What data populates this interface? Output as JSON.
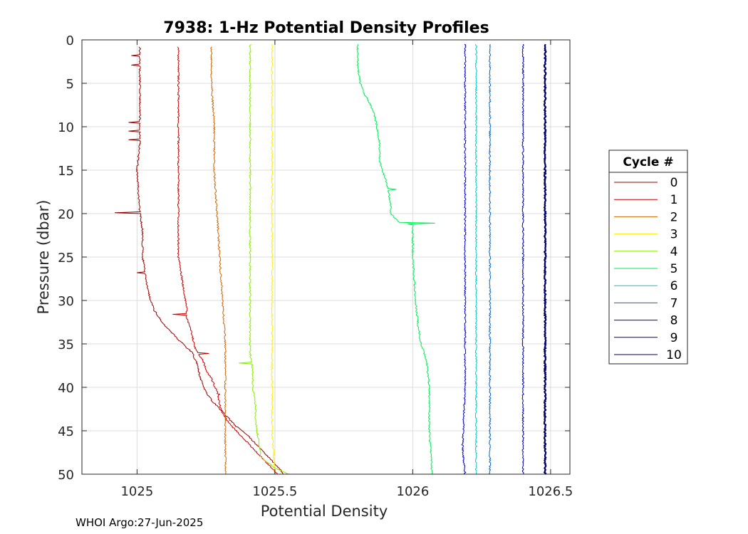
{
  "chart_data": {
    "type": "line",
    "title": "7938: 1-Hz Potential Density Profiles",
    "xlabel": "Potential Density",
    "ylabel": "Pressure (dbar)",
    "xlim": [
      1024.8,
      1026.57
    ],
    "ylim": [
      0,
      50
    ],
    "y_reversed": true,
    "grid": true,
    "xticks": [
      1025,
      1025.5,
      1026,
      1026.5
    ],
    "xtick_labels": [
      "1025",
      "1025.5",
      "1026",
      "1026.5"
    ],
    "yticks": [
      0,
      5,
      10,
      15,
      20,
      25,
      30,
      35,
      40,
      45,
      50
    ],
    "ytick_labels": [
      "0",
      "5",
      "10",
      "15",
      "20",
      "25",
      "30",
      "35",
      "40",
      "45",
      "50"
    ],
    "legend_title": "Cycle #",
    "legend_position": "right",
    "series": [
      {
        "name": "0",
        "color": "#990000",
        "points": [
          [
            1025.01,
            0.8
          ],
          [
            1025.01,
            1.8
          ],
          [
            1025.01,
            3
          ],
          [
            1025.01,
            5
          ],
          [
            1025.01,
            8
          ],
          [
            1025.01,
            9.5
          ],
          [
            1025.01,
            12
          ],
          [
            1025.0,
            15
          ],
          [
            1025.01,
            19.8
          ],
          [
            1025.02,
            22
          ],
          [
            1025.02,
            25
          ],
          [
            1025.03,
            27
          ],
          [
            1025.04,
            29
          ],
          [
            1025.06,
            31
          ],
          [
            1025.09,
            32.5
          ],
          [
            1025.12,
            33.5
          ],
          [
            1025.15,
            34.5
          ],
          [
            1025.2,
            36
          ],
          [
            1025.22,
            37.5
          ],
          [
            1025.23,
            39
          ],
          [
            1025.25,
            40.5
          ],
          [
            1025.27,
            41.5
          ],
          [
            1025.3,
            42.5
          ],
          [
            1025.33,
            43.5
          ],
          [
            1025.36,
            44.5
          ],
          [
            1025.4,
            45.5
          ],
          [
            1025.43,
            46.5
          ],
          [
            1025.46,
            47.5
          ],
          [
            1025.49,
            48.5
          ],
          [
            1025.52,
            49.5
          ],
          [
            1025.53,
            50
          ]
        ],
        "spikes": [
          [
            1024.98,
            1.8
          ],
          [
            1024.98,
            2.9
          ],
          [
            1024.97,
            9.5
          ],
          [
            1024.97,
            10.5
          ],
          [
            1024.97,
            11.5
          ],
          [
            1024.92,
            19.9
          ],
          [
            1025.0,
            26.8
          ]
        ]
      },
      {
        "name": "1",
        "color": "#cc0000",
        "points": [
          [
            1025.15,
            0.8
          ],
          [
            1025.15,
            5
          ],
          [
            1025.15,
            10
          ],
          [
            1025.15,
            15
          ],
          [
            1025.15,
            20
          ],
          [
            1025.15,
            25
          ],
          [
            1025.16,
            27
          ],
          [
            1025.17,
            29
          ],
          [
            1025.18,
            31
          ],
          [
            1025.18,
            32
          ],
          [
            1025.19,
            33
          ],
          [
            1025.2,
            34
          ],
          [
            1025.21,
            35.5
          ],
          [
            1025.22,
            36
          ],
          [
            1025.24,
            37
          ],
          [
            1025.25,
            38
          ],
          [
            1025.27,
            39
          ],
          [
            1025.29,
            40.5
          ],
          [
            1025.3,
            42
          ],
          [
            1025.31,
            43
          ],
          [
            1025.33,
            44
          ],
          [
            1025.36,
            45
          ],
          [
            1025.39,
            46
          ],
          [
            1025.42,
            47
          ],
          [
            1025.45,
            48
          ],
          [
            1025.48,
            49
          ],
          [
            1025.51,
            50
          ]
        ],
        "spikes": [
          [
            1025.13,
            31.6
          ],
          [
            1025.26,
            36.1
          ],
          [
            1025.3,
            40.8
          ]
        ]
      },
      {
        "name": "2",
        "color": "#cc6600",
        "points": [
          [
            1025.27,
            0.8
          ],
          [
            1025.27,
            5
          ],
          [
            1025.28,
            10
          ],
          [
            1025.28,
            15
          ],
          [
            1025.29,
            20
          ],
          [
            1025.3,
            25
          ],
          [
            1025.31,
            30
          ],
          [
            1025.32,
            35
          ],
          [
            1025.32,
            40
          ],
          [
            1025.32,
            45
          ],
          [
            1025.32,
            50
          ]
        ]
      },
      {
        "name": "3",
        "color": "#ffee00",
        "points": [
          [
            1025.49,
            0.5
          ],
          [
            1025.49,
            10
          ],
          [
            1025.49,
            20
          ],
          [
            1025.49,
            30
          ],
          [
            1025.49,
            40
          ],
          [
            1025.49,
            45
          ],
          [
            1025.5,
            50
          ]
        ]
      },
      {
        "name": "4",
        "color": "#88ee00",
        "points": [
          [
            1025.41,
            0.5
          ],
          [
            1025.41,
            10
          ],
          [
            1025.41,
            20
          ],
          [
            1025.41,
            30
          ],
          [
            1025.41,
            36
          ],
          [
            1025.42,
            38
          ],
          [
            1025.42,
            40
          ],
          [
            1025.43,
            42
          ],
          [
            1025.43,
            44
          ],
          [
            1025.44,
            46
          ],
          [
            1025.45,
            48
          ],
          [
            1025.5,
            49.3
          ],
          [
            1025.55,
            50
          ]
        ],
        "spikes": [
          [
            1025.37,
            37.2
          ]
        ]
      },
      {
        "name": "5",
        "color": "#00ee55",
        "points": [
          [
            1025.8,
            0.5
          ],
          [
            1025.8,
            3
          ],
          [
            1025.81,
            5
          ],
          [
            1025.82,
            6
          ],
          [
            1025.84,
            7
          ],
          [
            1025.86,
            8.5
          ],
          [
            1025.87,
            10
          ],
          [
            1025.88,
            12
          ],
          [
            1025.88,
            14
          ],
          [
            1025.9,
            16
          ],
          [
            1025.91,
            17
          ],
          [
            1025.92,
            19
          ],
          [
            1025.92,
            20
          ],
          [
            1025.95,
            21
          ],
          [
            1026.0,
            21.3
          ],
          [
            1026.0,
            25
          ],
          [
            1026.01,
            30
          ],
          [
            1026.02,
            33
          ],
          [
            1026.03,
            35
          ],
          [
            1026.05,
            37
          ],
          [
            1026.06,
            40
          ],
          [
            1026.06,
            45
          ],
          [
            1026.07,
            50
          ]
        ],
        "spikes": [
          [
            1026.08,
            21.1
          ],
          [
            1025.94,
            17.2
          ]
        ]
      },
      {
        "name": "6",
        "color": "#00cccc",
        "points": [
          [
            1026.23,
            0.5
          ],
          [
            1026.23,
            10
          ],
          [
            1026.23,
            20
          ],
          [
            1026.23,
            30
          ],
          [
            1026.23,
            40
          ],
          [
            1026.23,
            50
          ]
        ]
      },
      {
        "name": "7",
        "color": "#0066cc",
        "points": [
          [
            1026.28,
            0.5
          ],
          [
            1026.28,
            10
          ],
          [
            1026.28,
            20
          ],
          [
            1026.28,
            30
          ],
          [
            1026.28,
            40
          ],
          [
            1026.28,
            50
          ]
        ]
      },
      {
        "name": "8",
        "color": "#0000cc",
        "points": [
          [
            1026.19,
            0.5
          ],
          [
            1026.19,
            10
          ],
          [
            1026.19,
            20
          ],
          [
            1026.19,
            30
          ],
          [
            1026.19,
            40
          ],
          [
            1026.18,
            47
          ],
          [
            1026.19,
            50
          ]
        ]
      },
      {
        "name": "9",
        "color": "#0000aa",
        "points": [
          [
            1026.4,
            0.5
          ],
          [
            1026.4,
            10
          ],
          [
            1026.4,
            20
          ],
          [
            1026.4,
            30
          ],
          [
            1026.4,
            40
          ],
          [
            1026.4,
            50
          ]
        ]
      },
      {
        "name": "10",
        "color": "#000066",
        "points": [
          [
            1026.48,
            0.5
          ],
          [
            1026.48,
            10
          ],
          [
            1026.48,
            20
          ],
          [
            1026.48,
            30
          ],
          [
            1026.48,
            40
          ],
          [
            1026.48,
            50
          ]
        ]
      }
    ]
  },
  "footer": "WHOI Argo:27-Jun-2025"
}
